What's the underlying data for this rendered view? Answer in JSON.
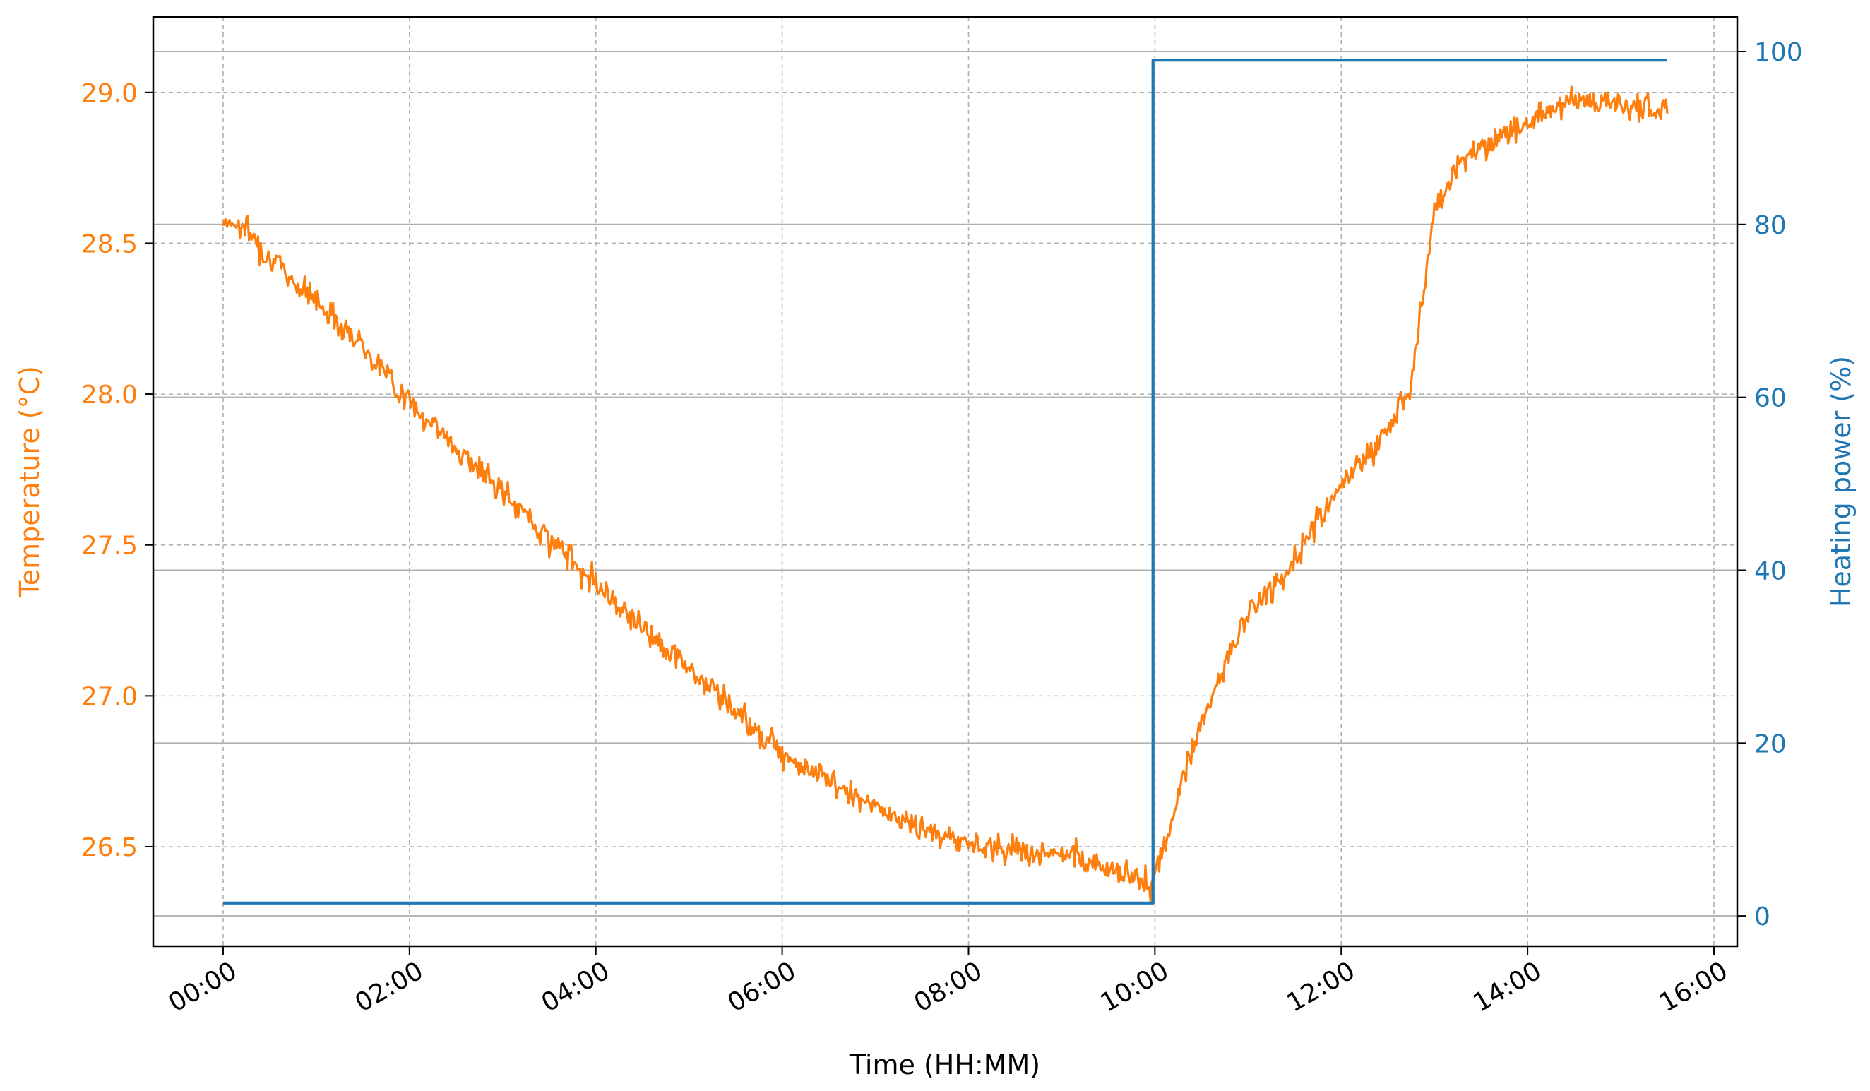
{
  "chart_data": {
    "type": "line",
    "title": "",
    "xlabel": "Time (HH:MM)",
    "ylabel_left": "Temperature (°C)",
    "ylabel_right": "Heating power (%)",
    "x_unit": "hours",
    "x_ticks": [
      0,
      2,
      4,
      6,
      8,
      10,
      12,
      14,
      16
    ],
    "x_tick_labels": [
      "00:00",
      "02:00",
      "04:00",
      "06:00",
      "08:00",
      "10:00",
      "12:00",
      "14:00",
      "16:00"
    ],
    "xlim": [
      -0.75,
      16.25
    ],
    "y_left_ticks": [
      26.5,
      27.0,
      27.5,
      28.0,
      28.5,
      29.0
    ],
    "y_left_tick_labels": [
      "26.5",
      "27.0",
      "27.5",
      "28.0",
      "28.5",
      "29.0"
    ],
    "ylim_left": [
      26.17,
      29.25
    ],
    "y_right_ticks": [
      0,
      20,
      40,
      60,
      80,
      100
    ],
    "y_right_tick_labels": [
      "0",
      "20",
      "40",
      "60",
      "80",
      "100"
    ],
    "ylim_right": [
      -3.5,
      104
    ],
    "grid_dashed": true,
    "grid_right_solid": true,
    "series": [
      {
        "name": "Temperature",
        "axis": "left",
        "color": "#ff7f0e",
        "x": [
          0,
          0.25,
          0.5,
          0.75,
          1,
          1.25,
          1.5,
          1.75,
          2,
          2.25,
          2.5,
          2.75,
          3,
          3.25,
          3.5,
          3.75,
          4,
          4.25,
          4.5,
          4.75,
          5,
          5.25,
          5.5,
          5.75,
          6,
          6.25,
          6.5,
          6.75,
          7,
          7.25,
          7.5,
          7.75,
          8,
          8.25,
          8.5,
          8.75,
          9,
          9.25,
          9.5,
          9.75,
          9.98,
          10.1,
          10.25,
          10.5,
          10.75,
          11,
          11.25,
          11.5,
          11.75,
          12,
          12.25,
          12.5,
          12.75,
          13,
          13.25,
          13.5,
          13.75,
          14,
          14.25,
          14.5,
          14.75,
          15,
          15.25,
          15.5
        ],
        "y": [
          28.58,
          28.55,
          28.45,
          28.38,
          28.31,
          28.24,
          28.16,
          28.07,
          27.97,
          27.9,
          27.82,
          27.75,
          27.67,
          27.6,
          27.52,
          27.45,
          27.38,
          27.3,
          27.23,
          27.16,
          27.09,
          27.02,
          26.95,
          26.88,
          26.82,
          26.76,
          26.72,
          26.67,
          26.63,
          26.59,
          26.56,
          26.53,
          26.51,
          26.5,
          26.49,
          26.48,
          26.47,
          26.45,
          26.43,
          26.41,
          26.37,
          26.5,
          26.67,
          26.92,
          27.1,
          27.27,
          27.35,
          27.45,
          27.58,
          27.7,
          27.78,
          27.88,
          28.05,
          28.6,
          28.76,
          28.82,
          28.86,
          28.9,
          28.95,
          28.98,
          28.97,
          28.96,
          28.95,
          28.93
        ],
        "noise": 0.035
      },
      {
        "name": "Heating power",
        "axis": "right",
        "color": "#1f77b4",
        "x": [
          0,
          9.98,
          9.98,
          15.5
        ],
        "y": [
          1.5,
          1.5,
          99,
          99
        ]
      }
    ]
  }
}
